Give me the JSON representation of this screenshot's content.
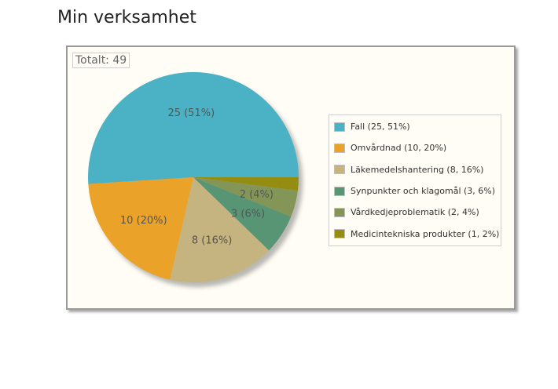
{
  "page": {
    "title": "Min verksamhet"
  },
  "chart_data": {
    "type": "pie",
    "total_label": "Totalt: 49",
    "slices": [
      {
        "label": "Fall",
        "value": 25,
        "percent": 51,
        "color": "#4bb2c5",
        "data_label": "25 (51%)",
        "legend": "Fall (25, 51%)"
      },
      {
        "label": "Omvårdnad",
        "value": 10,
        "percent": 20,
        "color": "#eaa228",
        "data_label": "10 (20%)",
        "legend": "Omvårdnad (10, 20%)"
      },
      {
        "label": "Läkemedelshantering",
        "value": 8,
        "percent": 16,
        "color": "#c5b47f",
        "data_label": "8 (16%)",
        "legend": "Läkemedelshantering (8, 16%)"
      },
      {
        "label": "Synpunkter och klagomål",
        "value": 3,
        "percent": 6,
        "color": "#579575",
        "data_label": "3 (6%)",
        "legend": "Synpunkter och klagomål (3, 6%)"
      },
      {
        "label": "Vårdkedjeproblematik",
        "value": 2,
        "percent": 4,
        "color": "#839557",
        "data_label": "2 (4%)",
        "legend": "Vårdkedjeproblematik (2, 4%)"
      },
      {
        "label": "Medicintekniska produkter",
        "value": 1,
        "percent": 2,
        "color": "#958c12",
        "data_label": "",
        "legend": "Medicintekniska produkter (1, 2%)"
      }
    ],
    "legend_position": "right"
  }
}
